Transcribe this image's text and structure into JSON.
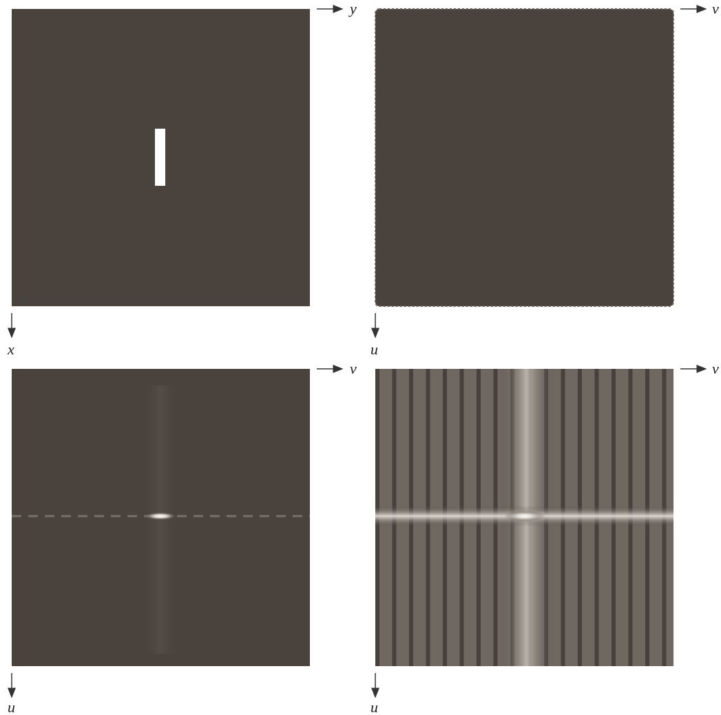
{
  "panels": [
    {
      "x_label": "y",
      "y_label": "x"
    },
    {
      "x_label": "v",
      "y_label": "u"
    },
    {
      "x_label": "v",
      "y_label": "u"
    },
    {
      "x_label": "v",
      "y_label": "u"
    }
  ]
}
